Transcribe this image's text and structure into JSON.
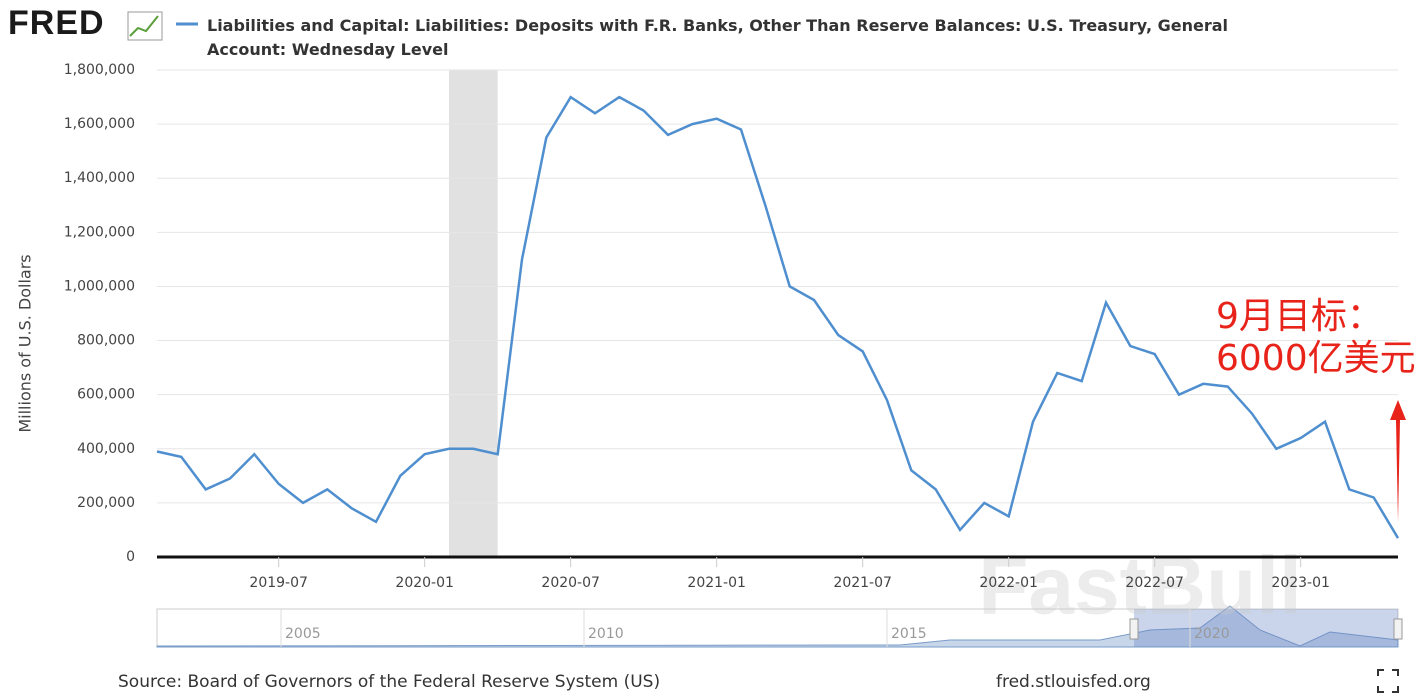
{
  "logo": "FRED",
  "chart_data": {
    "type": "line",
    "y_label": "Millions of U.S. Dollars",
    "x": [
      "2019-02",
      "2019-03",
      "2019-04",
      "2019-05",
      "2019-06",
      "2019-07",
      "2019-08",
      "2019-09",
      "2019-10",
      "2019-11",
      "2019-12",
      "2020-01",
      "2020-02",
      "2020-03",
      "2020-04",
      "2020-05",
      "2020-06",
      "2020-07",
      "2020-08",
      "2020-09",
      "2020-10",
      "2020-11",
      "2020-12",
      "2021-01",
      "2021-02",
      "2021-03",
      "2021-04",
      "2021-05",
      "2021-06",
      "2021-07",
      "2021-08",
      "2021-09",
      "2021-10",
      "2021-11",
      "2021-12",
      "2022-01",
      "2022-02",
      "2022-03",
      "2022-04",
      "2022-05",
      "2022-06",
      "2022-07",
      "2022-08",
      "2022-09",
      "2022-10",
      "2022-11",
      "2022-12",
      "2023-01",
      "2023-02",
      "2023-03",
      "2023-04",
      "2023-05"
    ],
    "series": [
      {
        "name": "Liabilities and Capital: Liabilities: Deposits with F.R. Banks, Other Than Reserve Balances: U.S. Treasury, General Account: Wednesday Level",
        "color": "#4f8fcf",
        "values": [
          390000,
          370000,
          250000,
          290000,
          380000,
          270000,
          200000,
          250000,
          180000,
          130000,
          300000,
          380000,
          400000,
          400000,
          380000,
          1100000,
          1550000,
          1700000,
          1640000,
          1700000,
          1650000,
          1560000,
          1600000,
          1620000,
          1580000,
          1300000,
          1000000,
          950000,
          820000,
          760000,
          580000,
          320000,
          250000,
          100000,
          200000,
          150000,
          500000,
          680000,
          650000,
          940000,
          780000,
          750000,
          600000,
          640000,
          630000,
          530000,
          400000,
          440000,
          500000,
          250000,
          220000,
          70000
        ]
      }
    ],
    "xlim": [
      "2019-02",
      "2023-05"
    ],
    "xticks": [
      "2019-07",
      "2020-01",
      "2020-07",
      "2021-01",
      "2021-07",
      "2022-01",
      "2022-07",
      "2023-01"
    ],
    "ylim": [
      0,
      1800000
    ],
    "yticks": [
      0,
      {
        "value": 200000,
        "label": "200,000"
      },
      {
        "value": 400000,
        "label": "400,000"
      },
      {
        "value": 600000,
        "label": "600,000"
      },
      {
        "value": 800000,
        "label": "800,000"
      },
      {
        "value": 1000000,
        "label": "1,000,000"
      },
      {
        "value": 1200000,
        "label": "1,200,000"
      },
      {
        "value": 1400000,
        "label": "1,400,000"
      },
      {
        "value": 1600000,
        "label": "1,600,000"
      },
      {
        "value": 1800000,
        "label": "1,800,000"
      }
    ],
    "grid": true,
    "recession": [
      "2020-02",
      "2020-04"
    ],
    "annotation": [
      "9月目标：",
      "6000亿美元"
    ],
    "annotation_color": "#e8231a"
  },
  "navigator": {
    "labels": [
      "2005",
      "2010",
      "2015",
      "2020"
    ]
  },
  "watermark": "FastBull",
  "source": "Source: Board of Governors of the Federal Reserve System (US)",
  "site": "fred.stlouisfed.org"
}
